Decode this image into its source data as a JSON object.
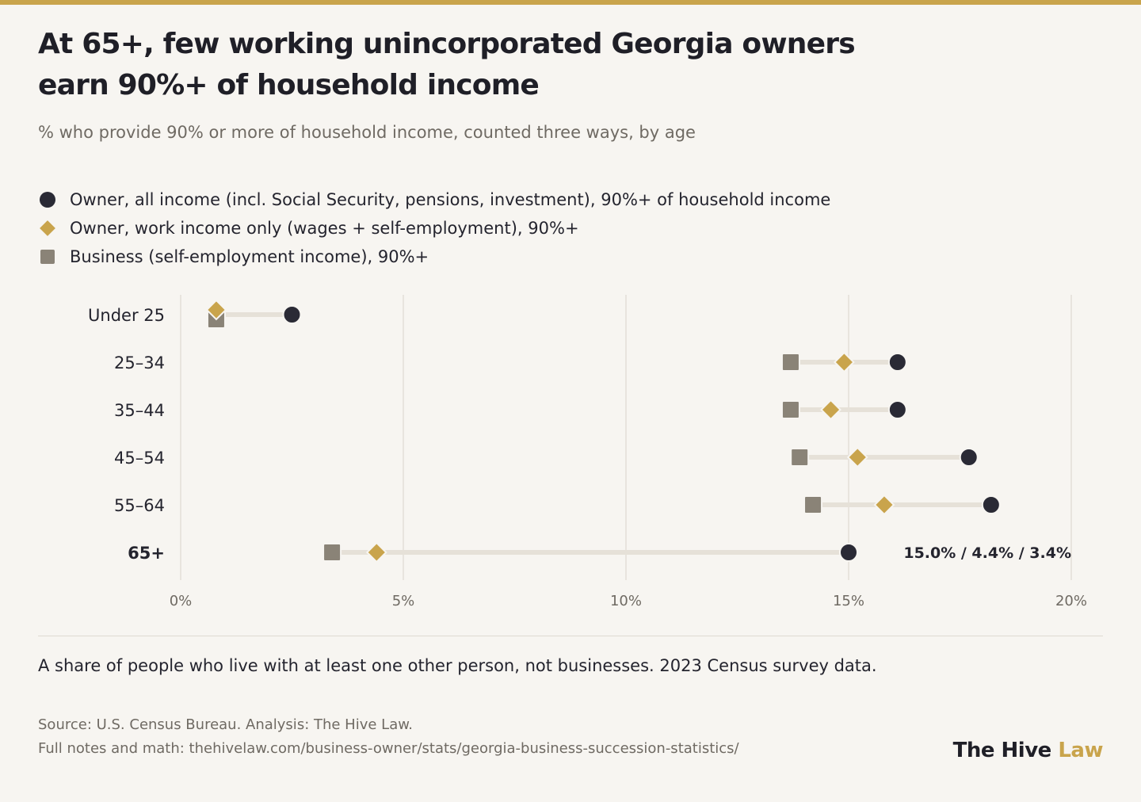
{
  "header": {
    "title": "At 65+, few working unincorporated Georgia owners earn 90%+ of household income",
    "subtitle": "% who provide 90% or more of household income, counted three ways, by age"
  },
  "legend": [
    {
      "marker": "circle",
      "color": "#2a2a35",
      "label": "Owner, all income (incl. Social Security, pensions, investment), 90%+ of household income"
    },
    {
      "marker": "diamond",
      "color": "#c9a44c",
      "label": "Owner, work income only (wages + self-employment), 90%+"
    },
    {
      "marker": "square",
      "color": "#8a8377",
      "label": "Business (self-employment income), 90%+"
    }
  ],
  "chart_data": {
    "type": "scatter",
    "subtype": "dot-plot",
    "categories": [
      "Under 25",
      "25–34",
      "35–44",
      "45–54",
      "55–64",
      "65+"
    ],
    "highlighted_category": "65+",
    "series": [
      {
        "name": "Owner, all income (incl. Social Security, pensions, investment), 90%+ of household income",
        "marker": "circle",
        "color": "#2a2a35",
        "values": [
          2.5,
          16.1,
          16.1,
          17.7,
          18.2,
          15.0
        ]
      },
      {
        "name": "Owner, work income only (wages + self-employment), 90%+",
        "marker": "diamond",
        "color": "#c9a44c",
        "values": [
          0.8,
          14.9,
          14.6,
          15.2,
          15.8,
          4.4
        ]
      },
      {
        "name": "Business (self-employment income), 90%+",
        "marker": "square",
        "color": "#8a8377",
        "values": [
          0.8,
          13.7,
          13.7,
          13.9,
          14.2,
          3.4
        ]
      }
    ],
    "xlim": [
      0,
      20
    ],
    "x_ticks": [
      "0%",
      "5%",
      "10%",
      "15%",
      "20%"
    ],
    "x_tick_values": [
      0,
      5,
      10,
      15,
      20
    ],
    "grid": true,
    "annotations": [
      {
        "category": "65+",
        "text": "15.0% / 4.4% / 3.4%"
      }
    ]
  },
  "notes": {
    "text": "A share of people who live with at least one other person, not businesses. 2023 Census survey data.",
    "source": "Source: U.S. Census Bureau. Analysis: The Hive Law.",
    "link": "Full notes and math: thehivelaw.com/business-owner/stats/georgia-business-succession-statistics/"
  },
  "brand": {
    "part1": "The Hive ",
    "part2": "Law"
  }
}
